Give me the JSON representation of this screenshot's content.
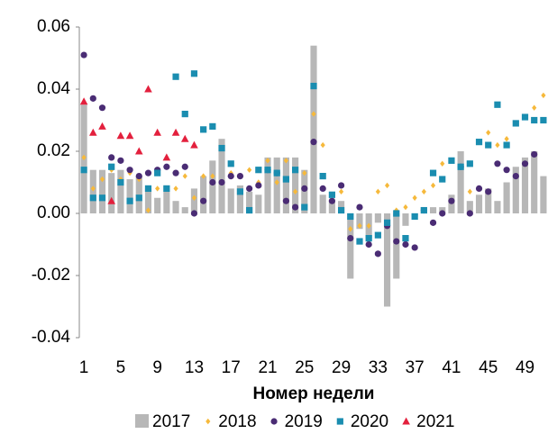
{
  "chart_data": {
    "type": "combo",
    "x_label": "Номер недели",
    "categories": [
      "1",
      null,
      null,
      null,
      "5",
      null,
      null,
      null,
      "9",
      null,
      null,
      null,
      "13",
      null,
      null,
      null,
      "17",
      null,
      null,
      null,
      "21",
      null,
      null,
      null,
      "25",
      null,
      null,
      null,
      "29",
      null,
      null,
      null,
      "33",
      null,
      null,
      null,
      "37",
      null,
      null,
      null,
      "41",
      null,
      null,
      null,
      "45",
      null,
      null,
      null,
      "49",
      null,
      null
    ],
    "ylim": [
      -0.04,
      0.06
    ],
    "yticks": [
      -0.04,
      -0.02,
      {
        "value": 0,
        "label": "0.00"
      },
      0.02,
      0.04,
      0.06
    ],
    "grid": false,
    "legend": "bottom",
    "series": [
      {
        "name": "2017",
        "type": "bar",
        "color": "#b7b7b7",
        "values": [
          0.035,
          0.014,
          0.014,
          0.013,
          0.014,
          0.011,
          0.012,
          0.008,
          0.005,
          0.009,
          0.004,
          0.002,
          0.008,
          0.012,
          0.017,
          0.024,
          0.008,
          0.009,
          0.007,
          0.006,
          0.018,
          0.018,
          0.018,
          0.018,
          0.014,
          0.054,
          0.006,
          0.004,
          0.004,
          -0.021,
          -0.005,
          -0.008,
          -0.003,
          -0.03,
          -0.021,
          -0.004,
          -0.001,
          0.002,
          0.002,
          0.002,
          0.006,
          0.02,
          0.004,
          0.006,
          0.008,
          0.004,
          0.01,
          0.015,
          0.018,
          0.02,
          0.012
        ]
      },
      {
        "name": "2018",
        "type": "scatter",
        "marker": "diamond",
        "color": "#f6b93b",
        "values": [
          0.018,
          0.008,
          0.011,
          0.014,
          0.011,
          0.013,
          0.011,
          0.001,
          0.008,
          0.008,
          0.008,
          0.012,
          0.005,
          0.012,
          0.012,
          0.021,
          0.013,
          0.012,
          0.014,
          0.01,
          0.017,
          0.01,
          0.017,
          0.007,
          0.013,
          0.032,
          0.022,
          0.004,
          0.007,
          -0.005,
          -0.004,
          -0.004,
          0.007,
          0.009,
          0.001,
          0.002,
          0.005,
          0.007,
          0.009,
          0.016,
          0.017,
          0.015,
          0.007,
          0.008,
          0.026,
          0.022,
          0.024,
          0.029,
          0.031,
          0.034,
          0.038
        ]
      },
      {
        "name": "2019",
        "type": "scatter",
        "marker": "circle",
        "color": "#4a2c74",
        "values": [
          0.051,
          0.037,
          0.034,
          0.018,
          0.017,
          0.014,
          0.012,
          0.013,
          0.014,
          0.015,
          0.013,
          0.015,
          0.0,
          0.004,
          0.01,
          0.01,
          0.012,
          0.012,
          0.008,
          0.009,
          0.014,
          0.013,
          0.004,
          0.002,
          0.008,
          0.023,
          0.008,
          0.004,
          0.009,
          -0.008,
          0.002,
          -0.01,
          -0.013,
          -0.004,
          -0.009,
          -0.01,
          -0.011,
          0.001,
          -0.003,
          0.0,
          0.004,
          0.015,
          0.0,
          0.008,
          0.007,
          0.016,
          0.014,
          0.012,
          0.016,
          0.019,
          null
        ]
      },
      {
        "name": "2020",
        "type": "scatter",
        "marker": "square",
        "color": "#1a8db0",
        "values": [
          0.014,
          0.005,
          0.005,
          0.015,
          0.01,
          0.004,
          0.005,
          0.008,
          0.013,
          0.008,
          0.044,
          0.032,
          0.045,
          0.027,
          0.028,
          0.021,
          0.016,
          0.007,
          0.001,
          0.014,
          0.014,
          0.013,
          0.011,
          0.014,
          0.002,
          0.041,
          0.012,
          0.006,
          0.001,
          -0.001,
          -0.009,
          -0.008,
          -0.007,
          -0.003,
          0.0,
          -0.008,
          -0.001,
          0.001,
          0.013,
          0.011,
          0.017,
          0.015,
          0.016,
          0.023,
          0.022,
          0.035,
          0.022,
          0.029,
          0.031,
          0.03,
          0.03
        ]
      },
      {
        "name": "2021",
        "type": "scatter",
        "marker": "triangle",
        "color": "#e3203d",
        "values": [
          0.036,
          0.026,
          0.028,
          0.004,
          0.025,
          0.025,
          0.02,
          0.04,
          0.026,
          0.018,
          0.026,
          0.024,
          0.022,
          null,
          null,
          null,
          null,
          null,
          null,
          null,
          null,
          null,
          null,
          null,
          null,
          null,
          null,
          null,
          null,
          null,
          null,
          null,
          null,
          null,
          null,
          null,
          null,
          null,
          null,
          null,
          null,
          null,
          null,
          null,
          null,
          null,
          null,
          null,
          null,
          null,
          null
        ]
      }
    ]
  }
}
